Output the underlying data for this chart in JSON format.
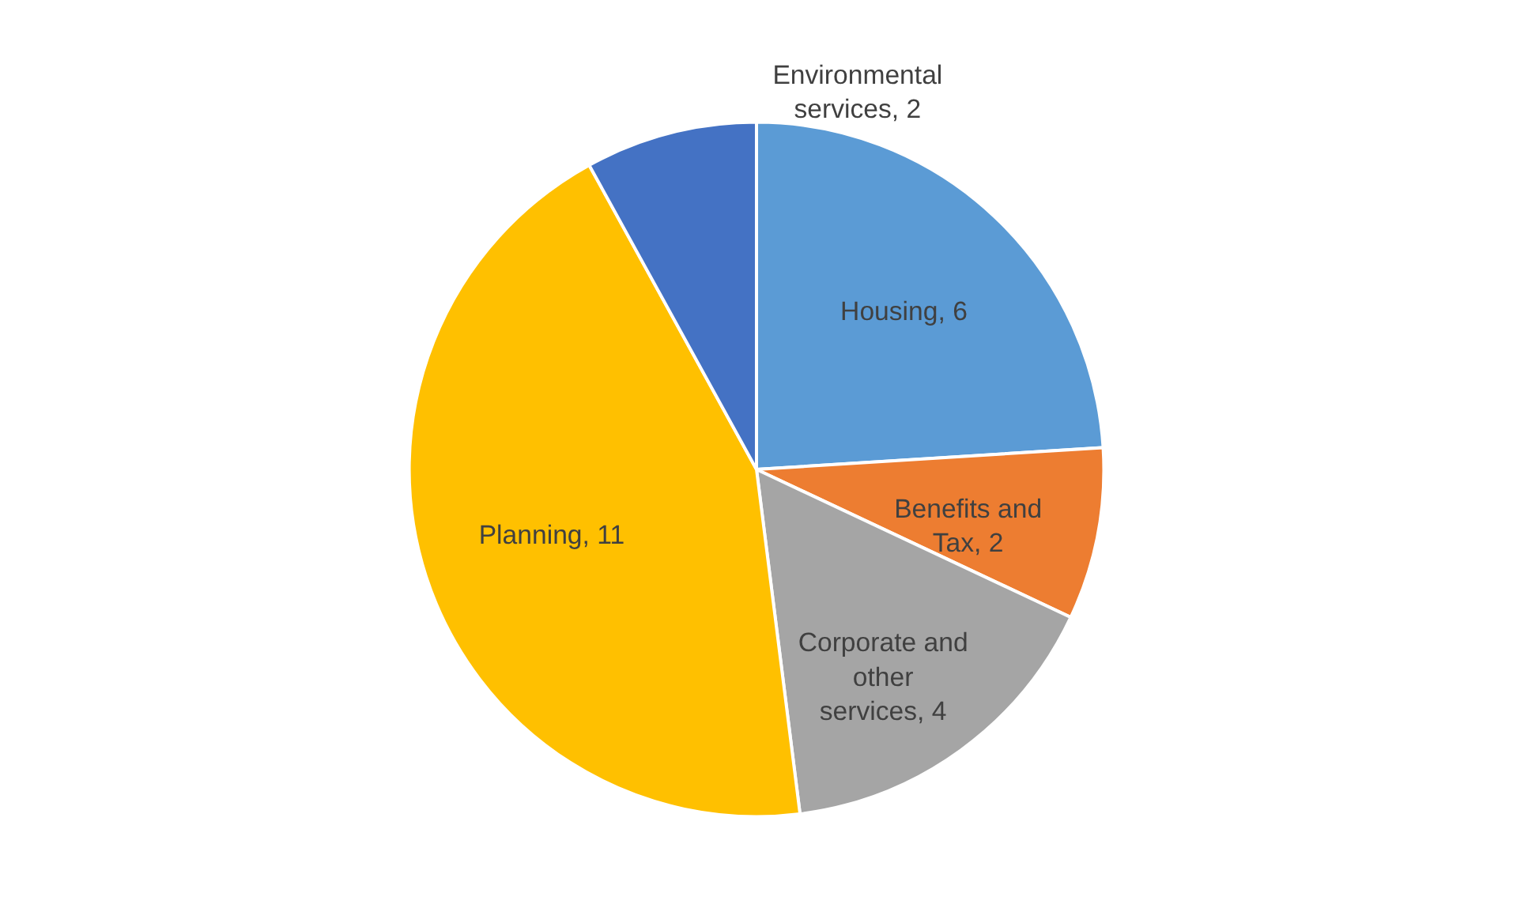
{
  "chart_data": {
    "type": "pie",
    "categories": [
      "Housing, 6",
      "Benefits and Tax, 2",
      "Corporate and other services, 4",
      "Planning, 11",
      "Environmental services, 2"
    ],
    "values": [
      6,
      2,
      4,
      11,
      2
    ],
    "colors": [
      "#5b9bd5",
      "#ed7d31",
      "#a5a5a5",
      "#ffc000",
      "#4472c4"
    ]
  }
}
